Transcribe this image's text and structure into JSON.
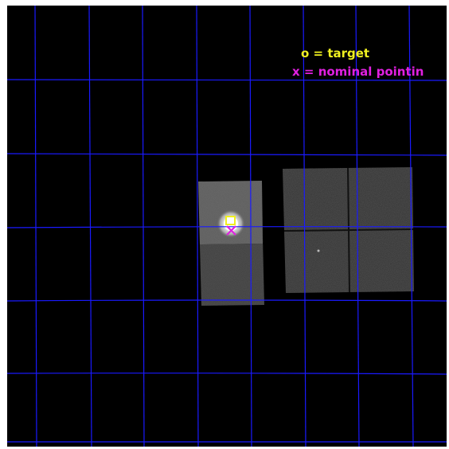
{
  "legend": {
    "target_text": "o = target",
    "pointing_text": "x = nominal pointin"
  },
  "colors": {
    "background": "#000000",
    "grid": "#1a1aff",
    "target": "#f0f020",
    "pointing": "#e020e0",
    "sky_frame": "#ffffff"
  },
  "markers": {
    "target_icon": "square-marker-icon",
    "pointing_icon": "x-marker-icon"
  }
}
